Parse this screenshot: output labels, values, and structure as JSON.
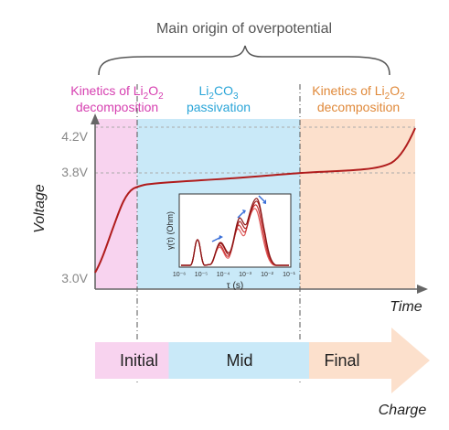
{
  "title": "Main origin of overpotential",
  "regions": {
    "left": {
      "label_line1_pre": "Kinetics of Li",
      "label_line1_sub": "2",
      "label_line1_mid": "O",
      "label_line1_sub2": "2",
      "label_line2": "decomposition",
      "color": "#d63fb0",
      "fill": "#f8d3ef"
    },
    "mid": {
      "label_line1_pre": "Li",
      "label_line1_sub": "2",
      "label_line1_mid": "CO",
      "label_line1_sub2": "3",
      "label_line2": "passivation",
      "color": "#2aa5d8",
      "fill": "#c9e9f8"
    },
    "right": {
      "label_line1_pre": "Kinetics of Li",
      "label_line1_sub": "2",
      "label_line1_mid": "O",
      "label_line1_sub2": "2",
      "label_line2": "decomposition",
      "color": "#e0893a",
      "fill": "#fce0cc"
    }
  },
  "axes": {
    "ylabel": "Voltage",
    "xlabel": "Time",
    "yticks": [
      "4.2V",
      "3.8V",
      "3.0V"
    ]
  },
  "inset": {
    "ylabel": "γ(τ) (Ohm)",
    "xlabel": "τ (s)",
    "xticks": [
      "10⁻⁶",
      "10⁻⁵",
      "10⁻⁴",
      "10⁻³",
      "10⁻²",
      "10⁻¹"
    ]
  },
  "stages": {
    "initial": "Initial",
    "mid": "Mid",
    "final": "Final",
    "arrow_label": "Charge"
  },
  "colors": {
    "curve": "#b01c1c",
    "axis": "#666666",
    "arrow_left": "#f8d3ef",
    "arrow_mid": "#c9e9f8",
    "arrow_right": "#fce0cc",
    "inset_arrow": "#3a6fd8"
  }
}
